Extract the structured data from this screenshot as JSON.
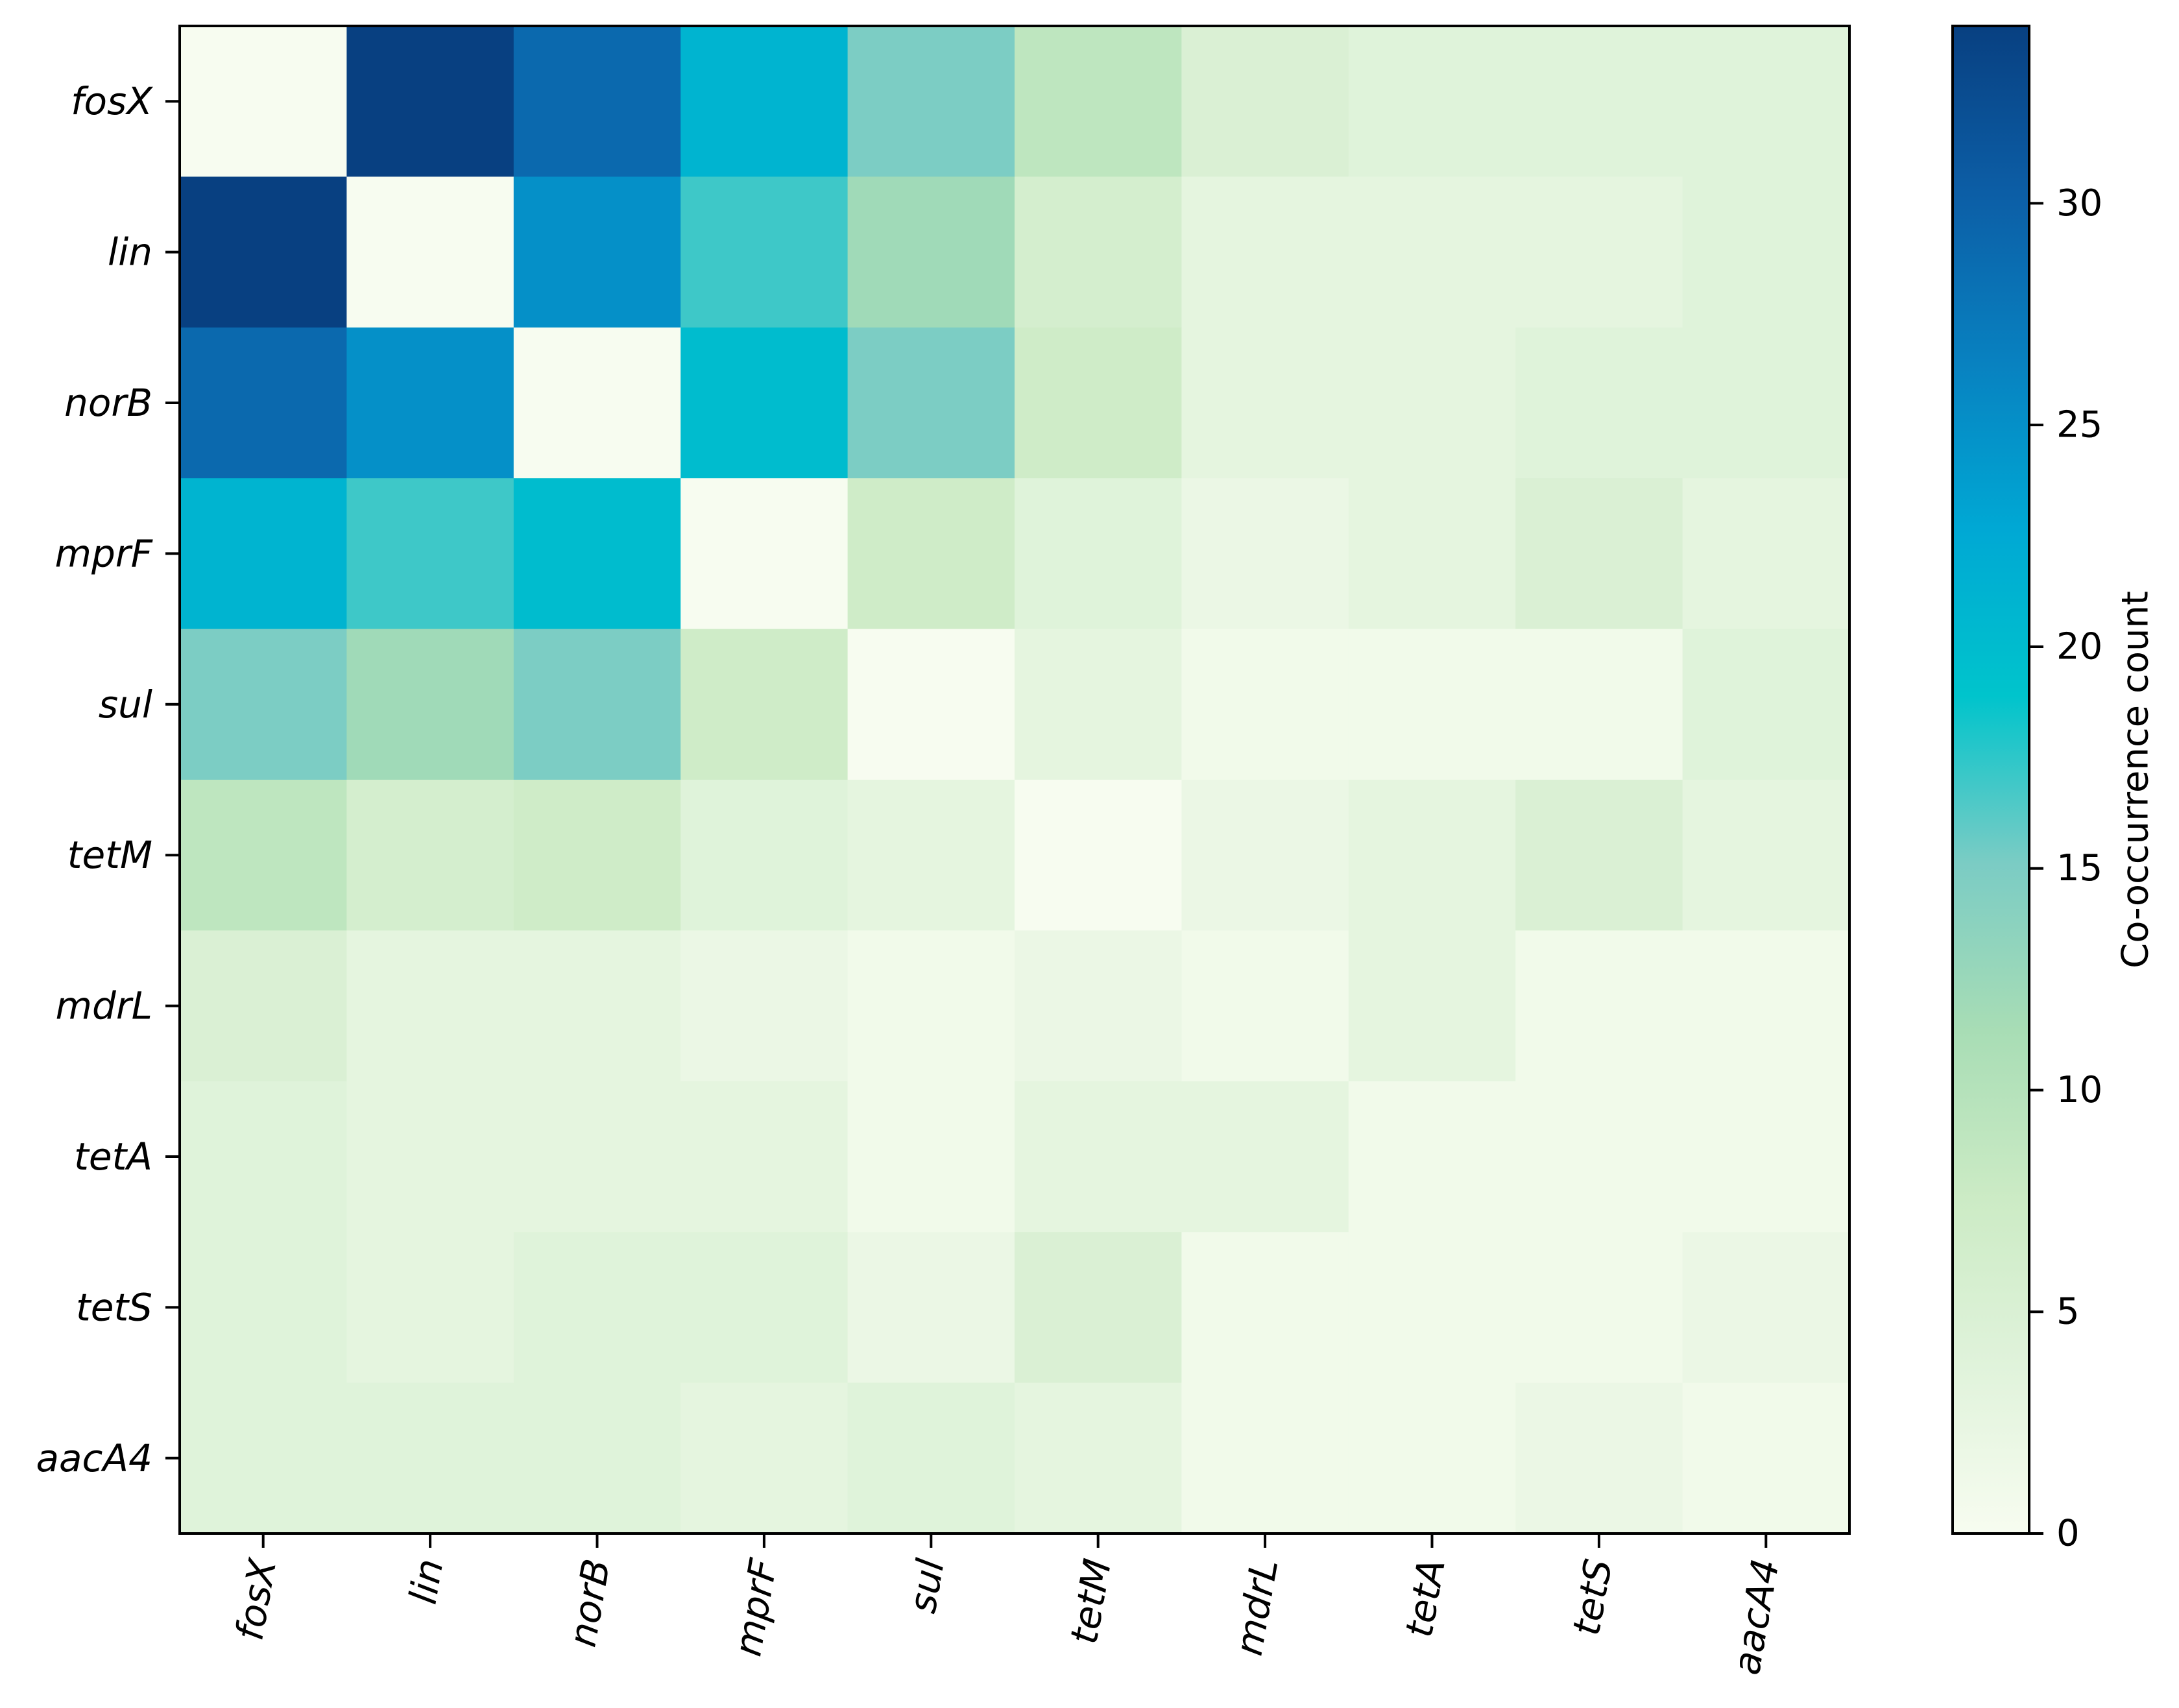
{
  "chart_data": {
    "type": "heatmap",
    "title": "",
    "xlabel": "",
    "ylabel": "",
    "x_categories": [
      "fosX",
      "lin",
      "norB",
      "mprF",
      "sul",
      "tetM",
      "mdrL",
      "tetA",
      "tetS",
      "aacA4"
    ],
    "y_categories": [
      "fosX",
      "lin",
      "norB",
      "mprF",
      "sul",
      "tetM",
      "mdrL",
      "tetA",
      "tetS",
      "aacA4"
    ],
    "values": [
      [
        0,
        34,
        29,
        21,
        15,
        9,
        5,
        4,
        4,
        4
      ],
      [
        34,
        0,
        25,
        17,
        12,
        6,
        3,
        3,
        3,
        4
      ],
      [
        29,
        25,
        0,
        20,
        15,
        7,
        3,
        3,
        4,
        4
      ],
      [
        21,
        17,
        20,
        0,
        7,
        4,
        2,
        3,
        5,
        3
      ],
      [
        15,
        12,
        15,
        7,
        0,
        3,
        1,
        1,
        1,
        4
      ],
      [
        9,
        6,
        7,
        4,
        3,
        0,
        2,
        3,
        5,
        3
      ],
      [
        5,
        3,
        3,
        2,
        1,
        2,
        1,
        3,
        1,
        1
      ],
      [
        4,
        3,
        3,
        3,
        1,
        3,
        3,
        1,
        1,
        1
      ],
      [
        4,
        3,
        4,
        4,
        2,
        5,
        1,
        1,
        1,
        2
      ],
      [
        4,
        4,
        4,
        3,
        4,
        3,
        1,
        1,
        2,
        1
      ]
    ],
    "colorbar": {
      "label": "Co-occurrence count",
      "range": [
        0,
        34
      ],
      "ticks": [
        0,
        5,
        10,
        15,
        20,
        25,
        30
      ],
      "colormap_stops": [
        "#f7fcf0",
        "#e0f3db",
        "#ccebc5",
        "#a8ddb5",
        "#7bccc4",
        "#00c4cc",
        "#00a8d4",
        "#0881c0",
        "#0c5ea6",
        "#084081"
      ]
    },
    "grid": false,
    "legend": "colorbar-right"
  }
}
